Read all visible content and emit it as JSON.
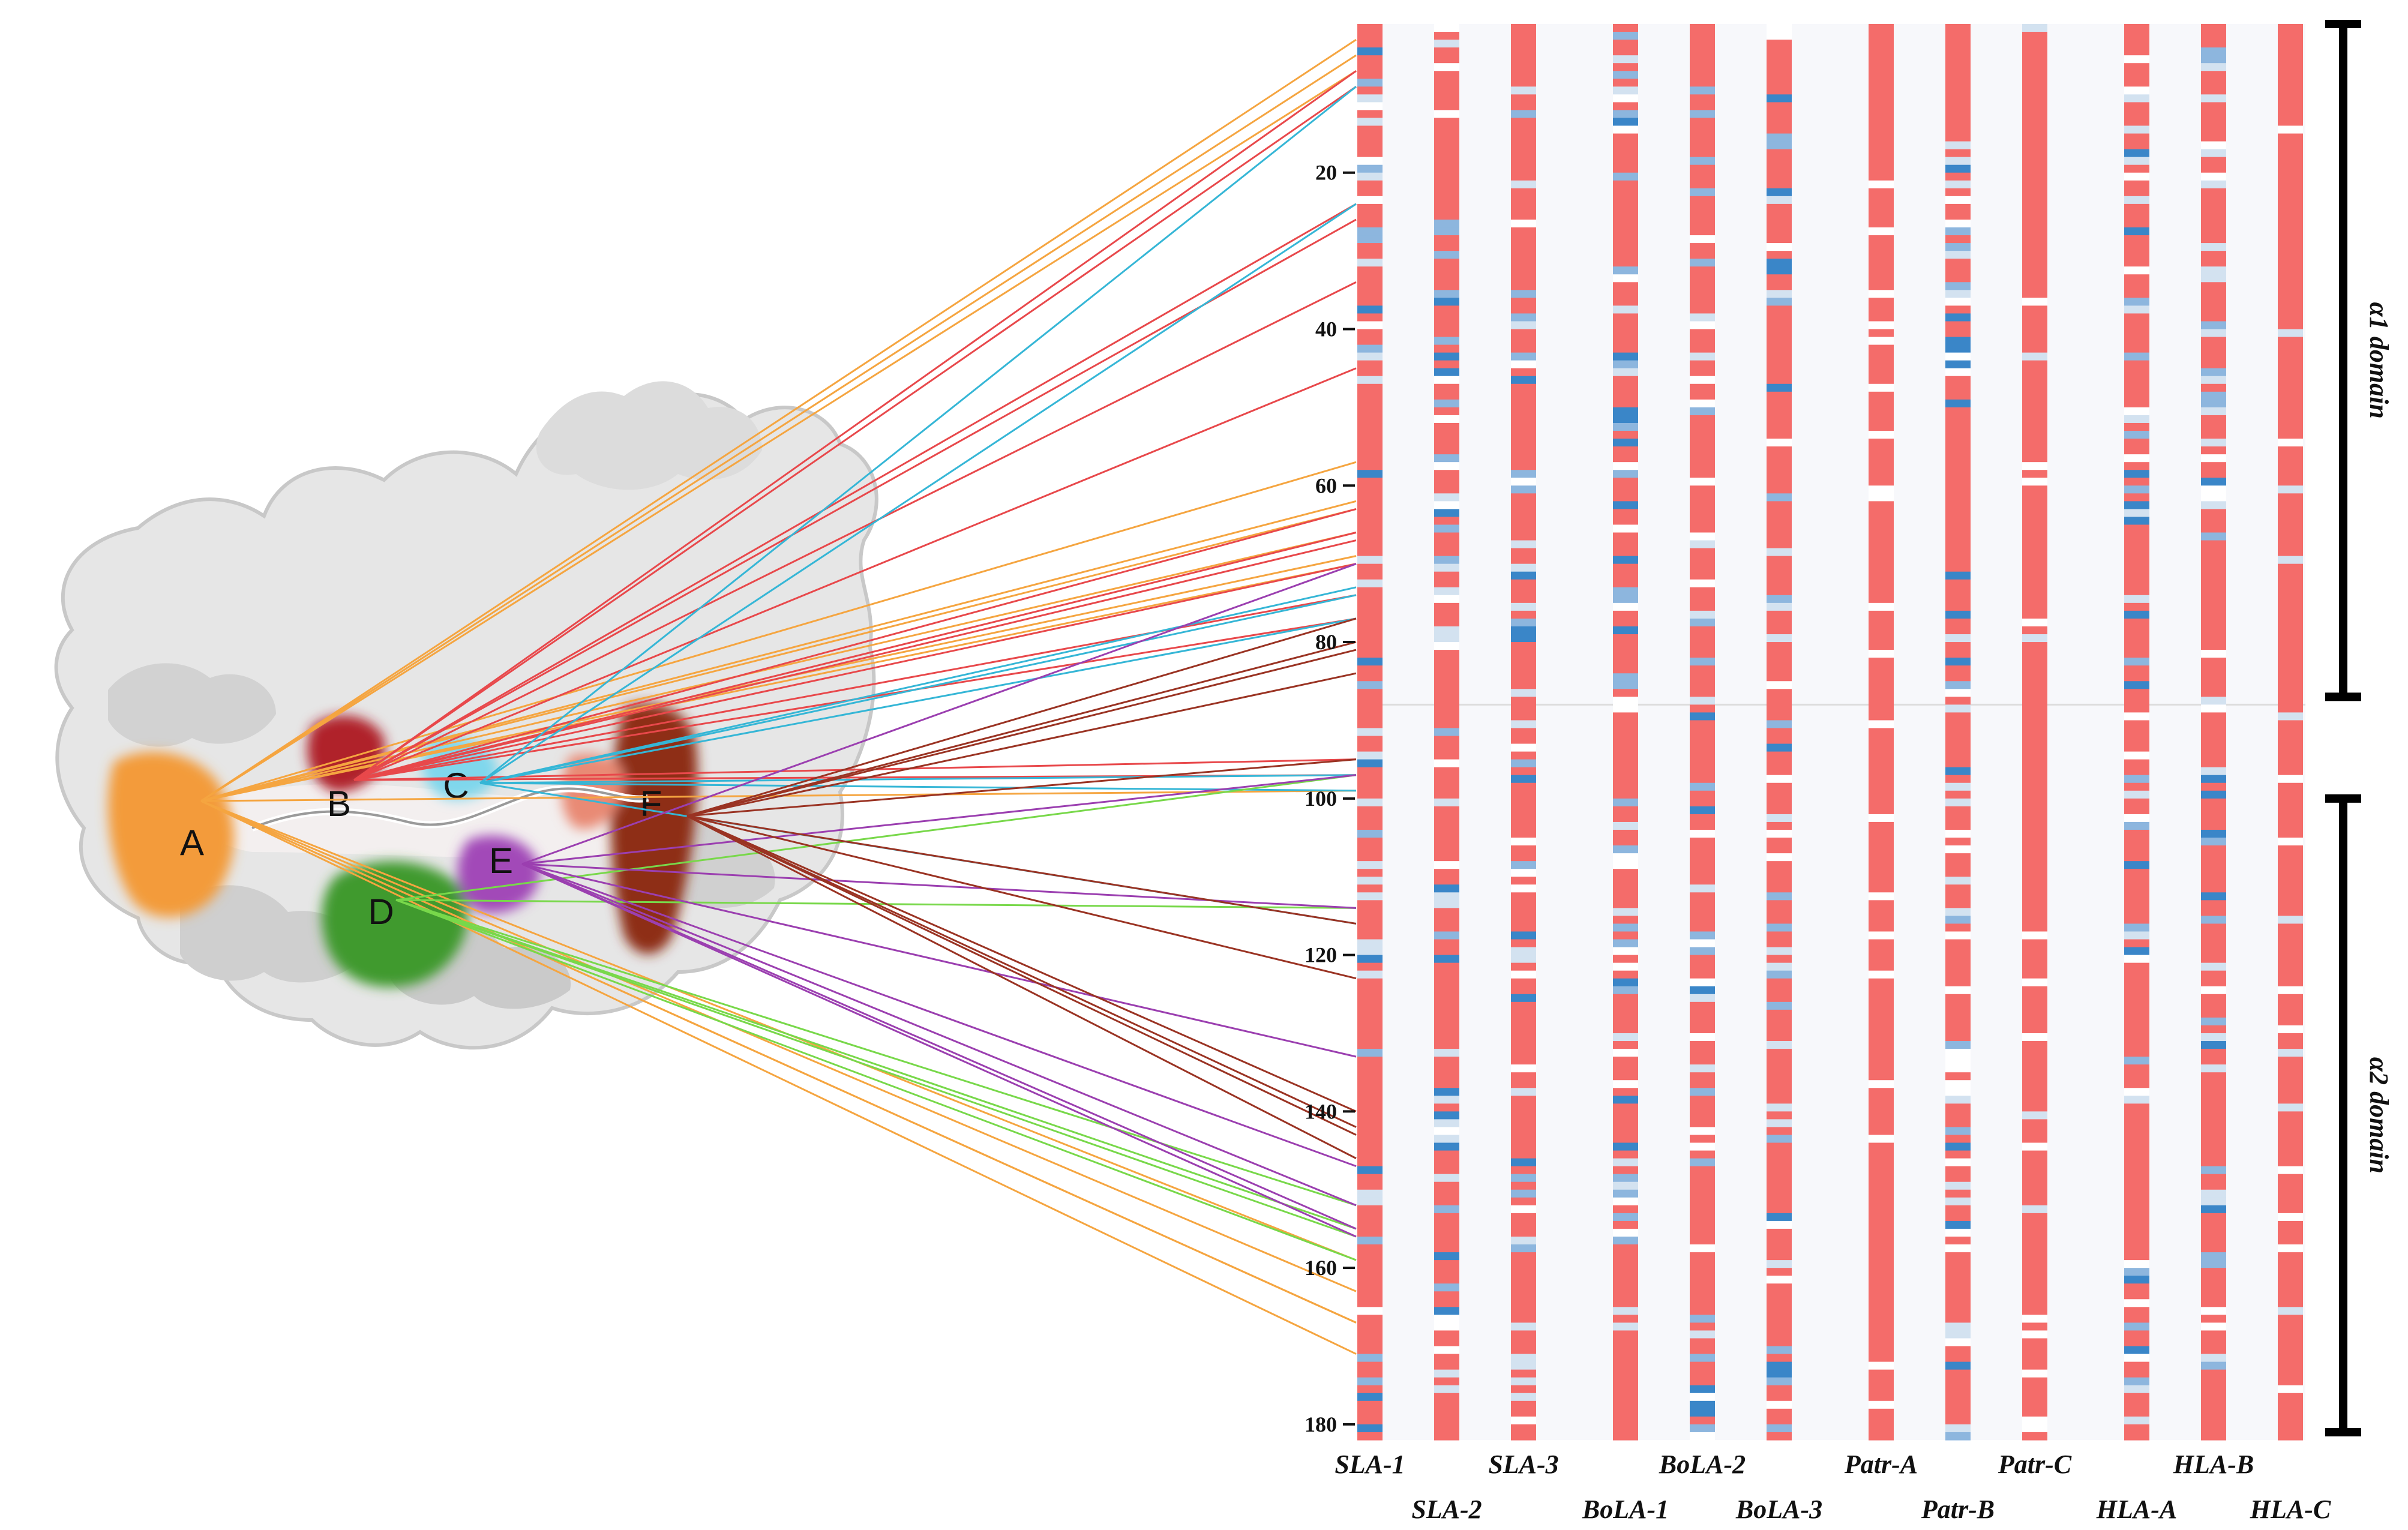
{
  "figure": {
    "pockets": [
      {
        "label": "A",
        "color": "#f39b3b"
      },
      {
        "label": "B",
        "color": "#c8323a"
      },
      {
        "label": "C",
        "color": "#59c6e2"
      },
      {
        "label": "D",
        "color": "#4fae3c"
      },
      {
        "label": "E",
        "color": "#a24ab8"
      },
      {
        "label": "F",
        "color": "#a63a22"
      }
    ],
    "pocket_line_colors": {
      "A": "#f5a540",
      "B": "#e8484b",
      "C": "#35b6d6",
      "D": "#78d84a",
      "E": "#9b3fb0",
      "F": "#9a3323"
    },
    "axis": {
      "ticks": [
        "20",
        "40",
        "60",
        "80",
        "100",
        "120",
        "140",
        "160",
        "180"
      ],
      "min": 1,
      "max": 181
    },
    "alleles": [
      "SLA-1",
      "SLA-2",
      "SLA-3",
      "BoLA-1",
      "BoLA-2",
      "BoLA-3",
      "Patr-A",
      "Patr-B",
      "Patr-C",
      "HLA-A",
      "HLA-B",
      "HLA-C"
    ],
    "domains": [
      {
        "label": "α1 domain",
        "from": 1,
        "to": 87
      },
      {
        "label": "α2 domain",
        "from": 100,
        "to": 181
      }
    ],
    "color_scale": {
      "conserved": "#f46c6a",
      "variable_light": "#d3e2f0",
      "variable_mid": "#8db6de",
      "variable_dark": "#3a86c8",
      "gap": "#ffffff"
    }
  }
}
